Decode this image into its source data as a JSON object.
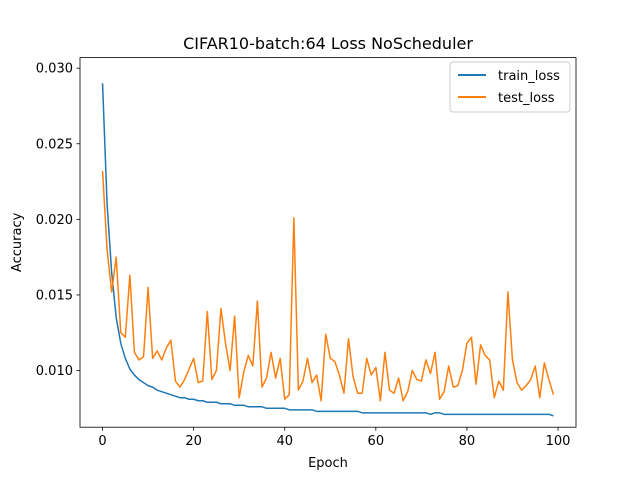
{
  "chart_data": {
    "type": "line",
    "title": "CIFAR10-batch:64 Loss NoScheduler",
    "xlabel": "Epoch",
    "ylabel": "Accuracy",
    "xlim": [
      -4.95,
      103.95
    ],
    "ylim": [
      0.00625,
      0.0307
    ],
    "xticks": [
      0,
      20,
      40,
      60,
      80,
      100
    ],
    "yticks": [
      0.01,
      0.015,
      0.02,
      0.025,
      0.03
    ],
    "ytick_labels": [
      "0.010",
      "0.015",
      "0.020",
      "0.025",
      "0.030"
    ],
    "grid": false,
    "legend_position": "top-right",
    "x": [
      0,
      1,
      2,
      3,
      4,
      5,
      6,
      7,
      8,
      9,
      10,
      11,
      12,
      13,
      14,
      15,
      16,
      17,
      18,
      19,
      20,
      21,
      22,
      23,
      24,
      25,
      26,
      27,
      28,
      29,
      30,
      31,
      32,
      33,
      34,
      35,
      36,
      37,
      38,
      39,
      40,
      41,
      42,
      43,
      44,
      45,
      46,
      47,
      48,
      49,
      50,
      51,
      52,
      53,
      54,
      55,
      56,
      57,
      58,
      59,
      60,
      61,
      62,
      63,
      64,
      65,
      66,
      67,
      68,
      69,
      70,
      71,
      72,
      73,
      74,
      75,
      76,
      77,
      78,
      79,
      80,
      81,
      82,
      83,
      84,
      85,
      86,
      87,
      88,
      89,
      90,
      91,
      92,
      93,
      94,
      95,
      96,
      97,
      98,
      99
    ],
    "series": [
      {
        "name": "train_loss",
        "color": "#1f77b4",
        "values": [
          0.029,
          0.021,
          0.0165,
          0.0135,
          0.0118,
          0.0108,
          0.0101,
          0.0097,
          0.0094,
          0.0092,
          0.009,
          0.0089,
          0.0087,
          0.0086,
          0.0085,
          0.0084,
          0.0083,
          0.0082,
          0.0082,
          0.0081,
          0.0081,
          0.008,
          0.008,
          0.0079,
          0.0079,
          0.0079,
          0.0078,
          0.0078,
          0.0078,
          0.0077,
          0.0077,
          0.0077,
          0.0076,
          0.0076,
          0.0076,
          0.0076,
          0.0075,
          0.0075,
          0.0075,
          0.0075,
          0.0075,
          0.0074,
          0.0074,
          0.0074,
          0.0074,
          0.0074,
          0.0074,
          0.0073,
          0.0073,
          0.0073,
          0.0073,
          0.0073,
          0.0073,
          0.0073,
          0.0073,
          0.0073,
          0.0073,
          0.0072,
          0.0072,
          0.0072,
          0.0072,
          0.0072,
          0.0072,
          0.0072,
          0.0072,
          0.0072,
          0.0072,
          0.0072,
          0.0072,
          0.0072,
          0.0072,
          0.0072,
          0.0071,
          0.0072,
          0.0072,
          0.0071,
          0.0071,
          0.0071,
          0.0071,
          0.0071,
          0.0071,
          0.0071,
          0.0071,
          0.0071,
          0.0071,
          0.0071,
          0.0071,
          0.0071,
          0.0071,
          0.0071,
          0.0071,
          0.0071,
          0.0071,
          0.0071,
          0.0071,
          0.0071,
          0.0071,
          0.0071,
          0.0071,
          0.007
        ]
      },
      {
        "name": "test_loss",
        "color": "#ff7f0e",
        "values": [
          0.0232,
          0.018,
          0.0152,
          0.0175,
          0.0125,
          0.0122,
          0.0163,
          0.0112,
          0.0107,
          0.0109,
          0.0155,
          0.0108,
          0.0113,
          0.0107,
          0.0115,
          0.012,
          0.0093,
          0.0089,
          0.0094,
          0.0101,
          0.0108,
          0.0092,
          0.0093,
          0.0139,
          0.0094,
          0.01,
          0.0141,
          0.0118,
          0.01,
          0.0136,
          0.0082,
          0.0099,
          0.011,
          0.0103,
          0.0146,
          0.0089,
          0.0095,
          0.0112,
          0.0095,
          0.0108,
          0.0081,
          0.0084,
          0.0201,
          0.0087,
          0.0093,
          0.0108,
          0.0092,
          0.0097,
          0.008,
          0.0124,
          0.0108,
          0.0106,
          0.0097,
          0.0085,
          0.0121,
          0.0096,
          0.0085,
          0.0085,
          0.0108,
          0.0097,
          0.0102,
          0.008,
          0.0112,
          0.0087,
          0.0085,
          0.0095,
          0.008,
          0.0086,
          0.01,
          0.0094,
          0.0093,
          0.0107,
          0.0098,
          0.0112,
          0.0081,
          0.0086,
          0.0103,
          0.0089,
          0.009,
          0.01,
          0.0118,
          0.0122,
          0.0091,
          0.0117,
          0.011,
          0.0107,
          0.0082,
          0.0093,
          0.0087,
          0.0152,
          0.0107,
          0.0092,
          0.0087,
          0.009,
          0.0094,
          0.0103,
          0.0082,
          0.0105,
          0.0094,
          0.0084
        ]
      }
    ]
  }
}
